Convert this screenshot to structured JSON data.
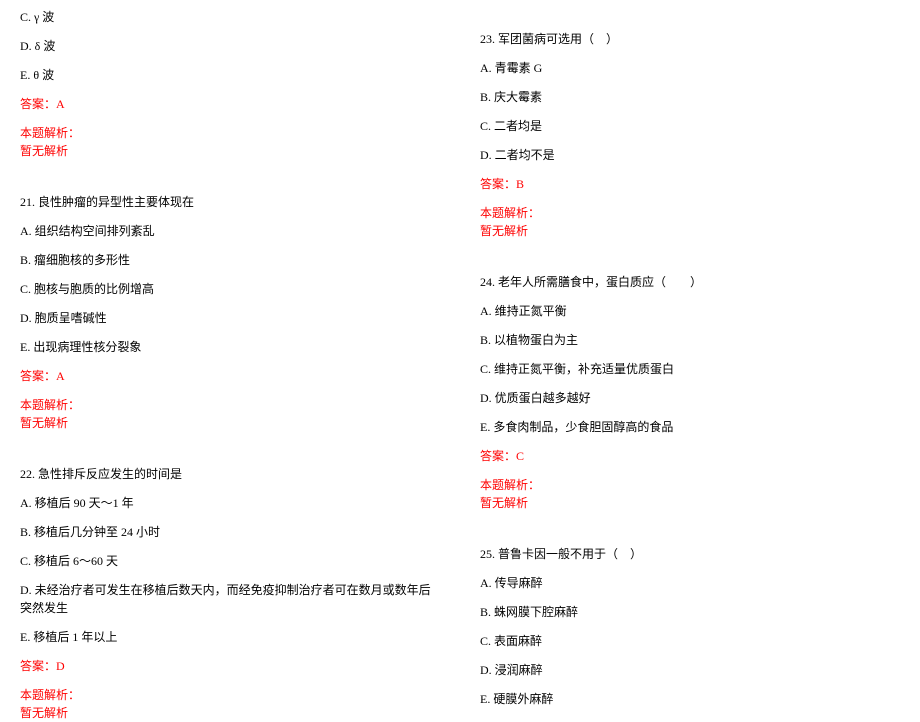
{
  "left": {
    "q20_options": {
      "c": "C. γ 波",
      "d": "D. δ 波",
      "e": "E. θ 波"
    },
    "q20_answer": "答案：A",
    "q20_analysis_label": "本题解析：",
    "q20_analysis_text": "暂无解析",
    "q21": {
      "stem": "21. 良性肿瘤的异型性主要体现在",
      "a": "A. 组织结构空间排列紊乱",
      "b": "B. 瘤细胞核的多形性",
      "c": "C. 胞核与胞质的比例增高",
      "d": "D. 胞质呈嗜碱性",
      "e": "E. 出现病理性核分裂象",
      "answer": "答案：A",
      "analysis_label": "本题解析：",
      "analysis_text": "暂无解析"
    },
    "q22": {
      "stem": "22. 急性排斥反应发生的时间是",
      "a": "A. 移植后 90 天～1 年",
      "b": "B. 移植后几分钟至 24 小时",
      "c": "C. 移植后 6～60 天",
      "d": "D. 未经治疗者可发生在移植后数天内，而经免疫抑制治疗者可在数月或数年后突然发生",
      "e": "E. 移植后 1 年以上",
      "answer": "答案：D",
      "analysis_label": "本题解析：",
      "analysis_text": "暂无解析"
    }
  },
  "right": {
    "q23": {
      "stem": "23. 军团菌病可选用（　）",
      "a": "A. 青霉素 G",
      "b": "B. 庆大霉素",
      "c": "C. 二者均是",
      "d": "D. 二者均不是",
      "answer": "答案：B",
      "analysis_label": "本题解析：",
      "analysis_text": "暂无解析"
    },
    "q24": {
      "stem": "24. 老年人所需膳食中，蛋白质应（　　）",
      "a": "A. 维持正氮平衡",
      "b": "B. 以植物蛋白为主",
      "c": "C. 维持正氮平衡，补充适量优质蛋白",
      "d": "D. 优质蛋白越多越好",
      "e": "E. 多食肉制品，少食胆固醇高的食品",
      "answer": "答案：C",
      "analysis_label": "本题解析：",
      "analysis_text": "暂无解析"
    },
    "q25": {
      "stem": "25. 普鲁卡因一般不用于（　）",
      "a": "A. 传导麻醉",
      "b": "B. 蛛网膜下腔麻醉",
      "c": "C. 表面麻醉",
      "d": "D. 浸润麻醉",
      "e": "E. 硬膜外麻醉"
    }
  },
  "colors": {
    "text": "#000000",
    "answer": "#ff0000",
    "background": "#ffffff"
  },
  "fonts": {
    "body_size": 12,
    "family": "SimSun"
  }
}
